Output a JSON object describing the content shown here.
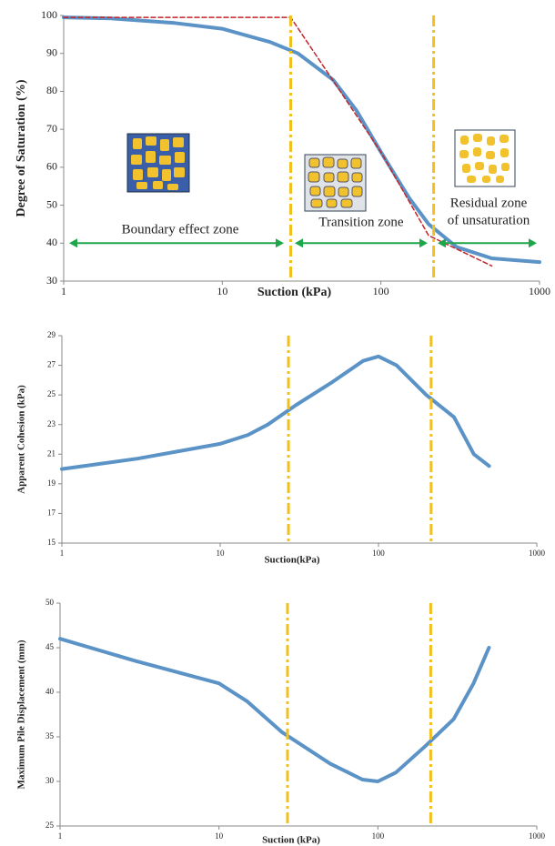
{
  "chart_data": [
    {
      "type": "line",
      "xlabel": "Suction (kPa)",
      "ylabel": "Degree of Saturation (%)",
      "log_x": true,
      "xlim": [
        1,
        1000
      ],
      "xticks": [
        1,
        10,
        100,
        1000
      ],
      "ylim": [
        30,
        100
      ],
      "yticks": [
        30,
        40,
        50,
        60,
        70,
        80,
        90,
        100
      ],
      "vlines": [
        27,
        215
      ],
      "vline_color": "#f2bf1f",
      "series": [
        {
          "color": "#5b93c7",
          "style": "solid",
          "x": [
            1,
            2,
            5,
            10,
            20,
            30,
            50,
            70,
            100,
            150,
            200,
            300,
            500,
            1000
          ],
          "values": [
            99.5,
            99.2,
            98,
            96.5,
            93,
            90,
            83,
            75,
            64,
            52,
            45,
            39,
            36,
            35
          ]
        },
        {
          "color": "#c0262d",
          "style": "dashed",
          "x": [
            1,
            27,
            100,
            200,
            500
          ],
          "values": [
            99.5,
            99.5,
            64,
            42,
            34
          ]
        }
      ],
      "annotations": [
        "Boundary effect zone",
        "Transition zone",
        "Residual zone",
        "of unsaturation"
      ]
    },
    {
      "type": "line",
      "xlabel": "Suction(kPa)",
      "ylabel": "Apparent Cohesion (kPa)",
      "log_x": true,
      "xlim": [
        1,
        1000
      ],
      "xticks": [
        1,
        10,
        100,
        1000
      ],
      "ylim": [
        15,
        29
      ],
      "yticks": [
        15,
        17,
        19,
        21,
        23,
        25,
        27,
        29
      ],
      "vlines": [
        27,
        215
      ],
      "vline_color": "#f2bf1f",
      "series": [
        {
          "color": "#5b93c7",
          "style": "solid",
          "x": [
            1,
            3,
            10,
            15,
            20,
            30,
            50,
            80,
            100,
            130,
            200,
            300,
            400,
            500
          ],
          "values": [
            20,
            20.7,
            21.7,
            22.3,
            23,
            24.3,
            25.8,
            27.3,
            27.6,
            27,
            25,
            23.5,
            21,
            20.2
          ]
        }
      ]
    },
    {
      "type": "line",
      "xlabel": "Suction (kPa)",
      "ylabel": "Maximum Pile Displacement (mm)",
      "log_x": true,
      "xlim": [
        1,
        1000
      ],
      "xticks": [
        1,
        10,
        100,
        1000
      ],
      "ylim": [
        25,
        50
      ],
      "yticks": [
        25,
        30,
        35,
        40,
        45,
        50
      ],
      "vlines": [
        27,
        215
      ],
      "vline_color": "#f2bf1f",
      "series": [
        {
          "color": "#5b93c7",
          "style": "solid",
          "x": [
            1,
            3,
            10,
            15,
            25,
            50,
            80,
            100,
            130,
            200,
            300,
            400,
            500
          ],
          "values": [
            46,
            43.5,
            41,
            39,
            35.5,
            32,
            30.2,
            30,
            31,
            34,
            37,
            41,
            45
          ]
        }
      ]
    }
  ]
}
